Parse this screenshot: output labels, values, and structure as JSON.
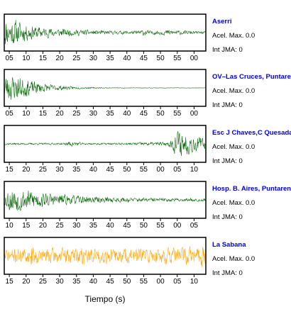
{
  "chart_data": [
    {
      "type": "line",
      "station": "Aserri",
      "accel_label": "Acel. Max. 0.0",
      "jma_label": "Int JMA: 0",
      "color": "#006400",
      "x_ticks": [
        "05",
        "10",
        "15",
        "20",
        "25",
        "30",
        "35",
        "40",
        "45",
        "50",
        "55",
        "00"
      ],
      "x_range": [
        -1.5,
        58.5
      ],
      "envelope": [
        [
          0,
          0.9
        ],
        [
          2,
          0.85
        ],
        [
          5,
          0.55
        ],
        [
          10,
          0.35
        ],
        [
          20,
          0.2
        ],
        [
          30,
          0.12
        ],
        [
          38,
          0.12
        ],
        [
          40,
          0.22
        ],
        [
          42,
          0.12
        ],
        [
          47,
          0.18
        ],
        [
          50,
          0.15
        ],
        [
          58.5,
          0.07
        ]
      ],
      "seed": 11
    },
    {
      "type": "line",
      "station": "OV–Las Cruces, Puntarenas",
      "accel_label": "Acel. Max. 0.0",
      "jma_label": "Int JMA: 0",
      "color": "#006400",
      "x_ticks": [
        "05",
        "10",
        "15",
        "20",
        "25",
        "30",
        "35",
        "40",
        "45",
        "50",
        "55",
        "00"
      ],
      "x_range": [
        -1.5,
        58.5
      ],
      "envelope": [
        [
          0,
          0.9
        ],
        [
          3,
          0.75
        ],
        [
          6,
          0.5
        ],
        [
          10,
          0.3
        ],
        [
          15,
          0.15
        ],
        [
          20,
          0.07
        ],
        [
          30,
          0.02
        ],
        [
          58.5,
          0.01
        ]
      ],
      "seed": 23
    },
    {
      "type": "line",
      "station": "Esc J Chaves,C Quesada",
      "accel_label": "Acel. Max. 0.0",
      "jma_label": "Int JMA: 0",
      "color": "#006400",
      "x_ticks": [
        "15",
        "20",
        "25",
        "30",
        "35",
        "40",
        "45",
        "50",
        "55",
        "00",
        "05",
        "10"
      ],
      "x_range": [
        11.5,
        71.5
      ],
      "envelope": [
        [
          11.5,
          0.06
        ],
        [
          29,
          0.06
        ],
        [
          31,
          0.18
        ],
        [
          33,
          0.16
        ],
        [
          35,
          0.06
        ],
        [
          48,
          0.06
        ],
        [
          52,
          0.12
        ],
        [
          60,
          0.12
        ],
        [
          61.5,
          0.35
        ],
        [
          63,
          0.95
        ],
        [
          65,
          0.8
        ],
        [
          68,
          0.55
        ],
        [
          71.5,
          0.35
        ]
      ],
      "seed": 37
    },
    {
      "type": "line",
      "station": "Hosp. B. Aires, Puntarenas",
      "accel_label": "Acel. Max. 0.0",
      "jma_label": "Int JMA: 0",
      "color": "#006400",
      "x_ticks": [
        "10",
        "15",
        "20",
        "25",
        "30",
        "35",
        "40",
        "45",
        "50",
        "55",
        "00",
        "05"
      ],
      "x_range": [
        8.5,
        68.5
      ],
      "envelope": [
        [
          8.5,
          0.3
        ],
        [
          10,
          0.85
        ],
        [
          14,
          0.75
        ],
        [
          18,
          0.6
        ],
        [
          22,
          0.45
        ],
        [
          28,
          0.3
        ],
        [
          35,
          0.22
        ],
        [
          45,
          0.15
        ],
        [
          55,
          0.12
        ],
        [
          68.5,
          0.1
        ]
      ],
      "seed": 53
    },
    {
      "type": "line",
      "station": "La Sabana",
      "accel_label": "Acel. Max. 0.0",
      "jma_label": "Int JMA: 0",
      "color": "#ffa500",
      "x_ticks": [
        "15",
        "20",
        "25",
        "30",
        "35",
        "40",
        "45",
        "50",
        "55",
        "00",
        "05",
        "10"
      ],
      "x_range": [
        11.5,
        71.5
      ],
      "envelope": [
        [
          11.5,
          0.45
        ],
        [
          19,
          0.5
        ],
        [
          19.6,
          0.8
        ],
        [
          20.4,
          0.5
        ],
        [
          34,
          0.55
        ],
        [
          34.6,
          0.92
        ],
        [
          35.6,
          0.5
        ],
        [
          55,
          0.5
        ],
        [
          68,
          0.6
        ],
        [
          71.5,
          0.85
        ]
      ],
      "seed": 71
    }
  ],
  "xlabel": "Tiempo (s)"
}
